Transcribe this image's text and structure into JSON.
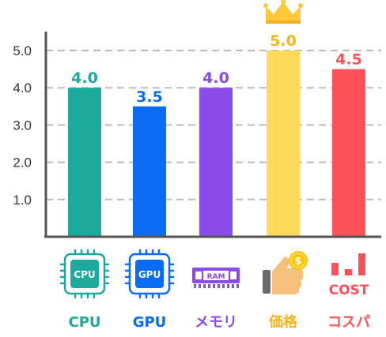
{
  "chart_data": {
    "type": "bar",
    "categories": [
      "CPU",
      "GPU",
      "メモリ",
      "価格",
      "コスパ"
    ],
    "values": [
      4.0,
      3.5,
      4.0,
      5.0,
      4.5
    ],
    "value_labels": [
      "4.0",
      "3.5",
      "4.0",
      "5.0",
      "4.5"
    ],
    "ylim": [
      0,
      5.5
    ],
    "yticks": [
      "1.0",
      "2.0",
      "3.0",
      "4.0",
      "5.0"
    ],
    "ytick_values": [
      1,
      2,
      3,
      4,
      5
    ],
    "grid": true,
    "colors": [
      "#1BAA9B",
      "#0A6CF5",
      "#8A4BEA",
      "#FFD95A",
      "#FF5157"
    ],
    "label_colors": [
      "#1BAA9B",
      "#0A6CF5",
      "#8A4BEA",
      "#F5B51B",
      "#FF5157"
    ],
    "icons": [
      "cpu-chip-icon",
      "gpu-chip-icon",
      "ram-module-icon",
      "thumbs-up-coin-icon",
      "cost-bars-icon"
    ],
    "icon_texts": {
      "cpu": "CPU",
      "gpu": "GPU",
      "ram": "RAM",
      "coin": "$",
      "cost": "COST"
    },
    "highlight_icon": "crown-icon"
  }
}
